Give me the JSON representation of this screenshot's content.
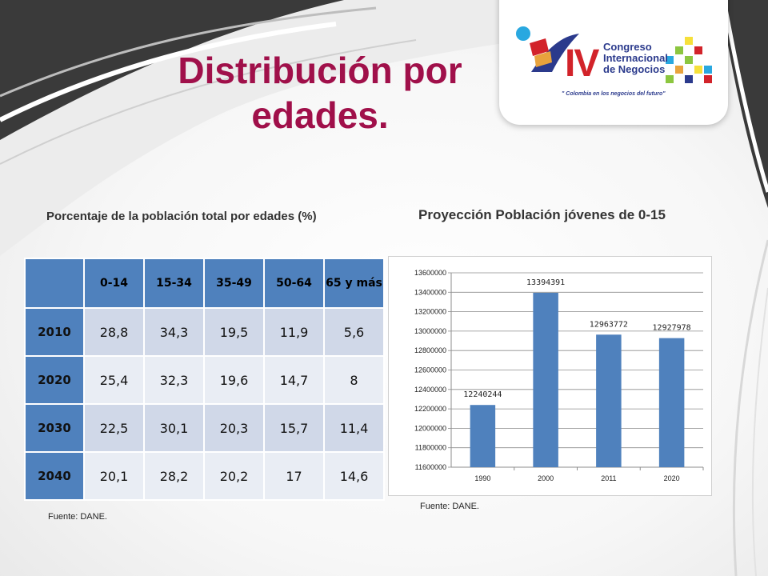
{
  "title": "Distribución por edades.",
  "logo": {
    "iv": "IV",
    "line1": "Congreso",
    "line2": "Internacional",
    "line3": "de Negocios",
    "slogan": "\" Colombia en los negocios del futuro\""
  },
  "table": {
    "caption": "Porcentaje de la población total por edades (%)",
    "headers": [
      "",
      "0-14",
      "15-34",
      "35-49",
      "50-64",
      "65 y más"
    ],
    "rows": [
      {
        "year": "2010",
        "values": [
          "28,8",
          "34,3",
          "19,5",
          "11,9",
          "5,6"
        ]
      },
      {
        "year": "2020",
        "values": [
          "25,4",
          "32,3",
          "19,6",
          "14,7",
          "8"
        ]
      },
      {
        "year": "2030",
        "values": [
          "22,5",
          "30,1",
          "20,3",
          "15,7",
          "11,4"
        ]
      },
      {
        "year": "2040",
        "values": [
          "20,1",
          "28,2",
          "20,2",
          "17",
          "14,6"
        ]
      }
    ],
    "source": "Fuente: DANE."
  },
  "chart_data": {
    "type": "bar",
    "title": "Proyección Población jóvenes de 0-15",
    "categories": [
      "1990",
      "2000",
      "2011",
      "2020"
    ],
    "values": [
      12240244,
      13394391,
      12963772,
      12927978
    ],
    "data_labels": [
      "12240244",
      "13394391",
      "12963772",
      "12927978"
    ],
    "ylim": [
      11600000,
      13600000
    ],
    "y_ticks": [
      11600000,
      11800000,
      12000000,
      12200000,
      12400000,
      12600000,
      12800000,
      13000000,
      13200000,
      13400000,
      13600000
    ],
    "grid": true,
    "legend": "none",
    "bar_color": "#4f81bd",
    "source": "Fuente: DANE."
  },
  "colors": {
    "title": "#a0104a",
    "header_fill": "#4f81bd",
    "row_odd": "#d0d8e8",
    "row_even": "#e9edf4"
  }
}
